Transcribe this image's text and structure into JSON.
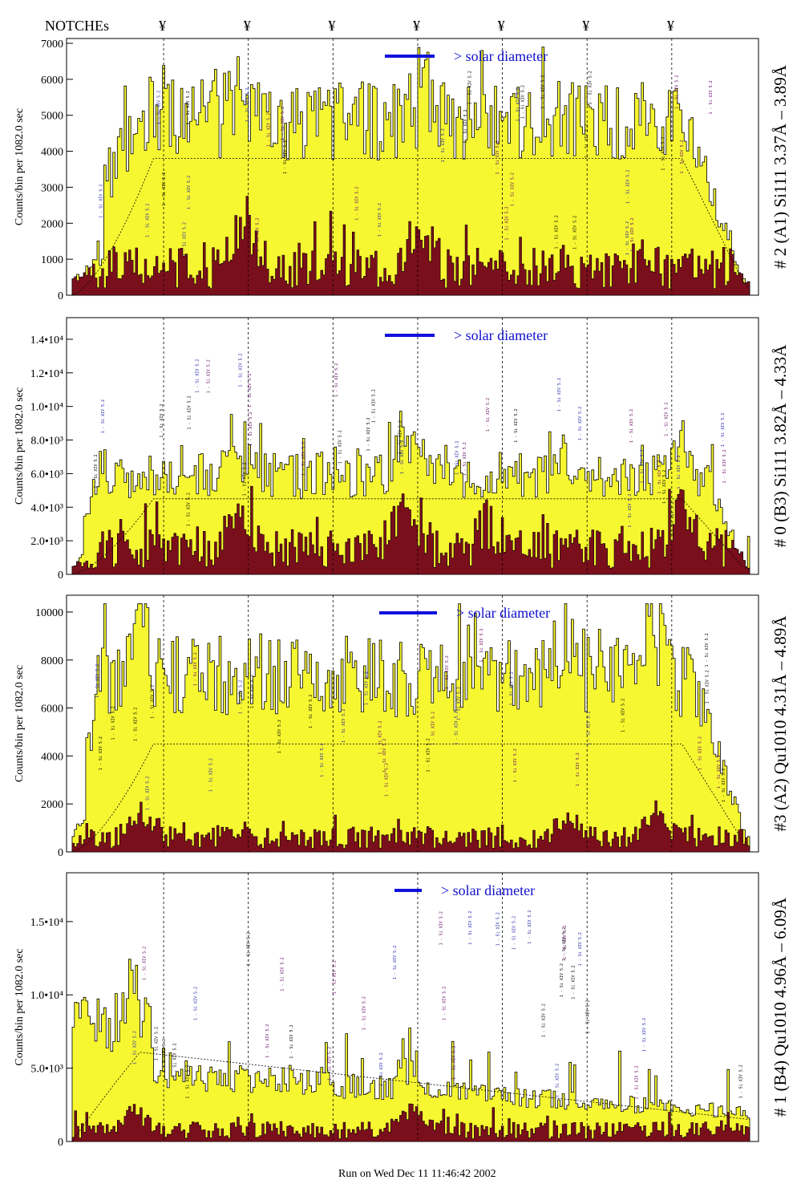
{
  "header": {
    "notches_label": "NOTCHEs",
    "notch_symbol": "¥"
  },
  "footer": {
    "run_text": "Run on Wed Dec 11 11:46:42 2002"
  },
  "legend_text": "> solar diameter",
  "colors": {
    "total_fill": "#f7f731",
    "detail_fill": "#7a0f1c",
    "legend_line": "#1010dd",
    "annotation_a": "#000000",
    "annotation_b": "#1a1aa8",
    "annotation_c": "#600060"
  },
  "chart_data": [
    {
      "type": "histogram",
      "ylabel": "Counts/bin per   1082.0 sec",
      "right_label": "# 2 (A1) Si111  3.37Å – 3.89Å",
      "ylim": [
        0,
        7000
      ],
      "yticks": [
        "0",
        "1000",
        "2000",
        "3000",
        "4000",
        "5000",
        "6000",
        "7000"
      ],
      "notches_x": [
        0.135,
        0.26,
        0.385,
        0.51,
        0.635,
        0.76,
        0.885
      ],
      "envelope_level": 3800,
      "profile": {
        "rise": 0.09,
        "fall": 0.9,
        "plateau": 5000,
        "peak_bins": [
          0.51,
          0.25
        ]
      },
      "detail_level": 900
    },
    {
      "type": "histogram",
      "ylabel": "Counts/bin per   1082.0 sec",
      "right_label": "# 0 (B3) Si111  3.82Å – 4.33Å",
      "ylim": [
        0,
        15000
      ],
      "yticks": [
        "0",
        "2.0•10³",
        "4.0•10³",
        "6.0•10³",
        "8.0•10³",
        "1.0•10⁴",
        "1.2•10⁴",
        "1.4•10⁴"
      ],
      "notches_x": [
        0.135,
        0.26,
        0.385,
        0.51,
        0.635,
        0.76,
        0.885
      ],
      "envelope_level": 4500,
      "profile": {
        "rise": 0.04,
        "fall": 0.93,
        "plateau": 6000,
        "peak_bins": [
          0.245,
          0.49,
          0.9
        ]
      },
      "detail_level": 1800
    },
    {
      "type": "histogram",
      "ylabel": "Counts/bin per   1082.0 sec",
      "right_label": "#3 (A2) Qu1010  4.31Å – 4.89Å",
      "ylim": [
        0,
        10500
      ],
      "yticks": [
        "0",
        "2000",
        "4000",
        "6000",
        "8000",
        "10000"
      ],
      "notches_x": [
        0.135,
        0.26,
        0.385,
        0.51,
        0.635,
        0.76,
        0.885
      ],
      "envelope_level": 4500,
      "profile": {
        "rise": 0.04,
        "fall": 0.91,
        "plateau": 7500,
        "peak_bins": [
          0.1,
          0.73,
          0.86
        ]
      },
      "detail_level": 700
    },
    {
      "type": "histogram",
      "ylabel": "Counts/bin per   1082.0 sec",
      "right_label": "# 1 (B4) Qu1010 4.96Å – 6.09Å",
      "ylim": [
        0,
        18000
      ],
      "yticks": [
        "0",
        "5.0•10³",
        "1.0•10⁴",
        "1.5•10⁴"
      ],
      "notches_x": [
        0.135,
        0.26,
        0.385,
        0.51,
        0.635,
        0.76,
        0.885
      ],
      "envelope_level": 3000,
      "profile": {
        "rise": 0.02,
        "fall": 0.97,
        "plateau": 4500,
        "peak_bins": [
          0.09,
          0.5
        ]
      },
      "detail_level": 900
    }
  ]
}
